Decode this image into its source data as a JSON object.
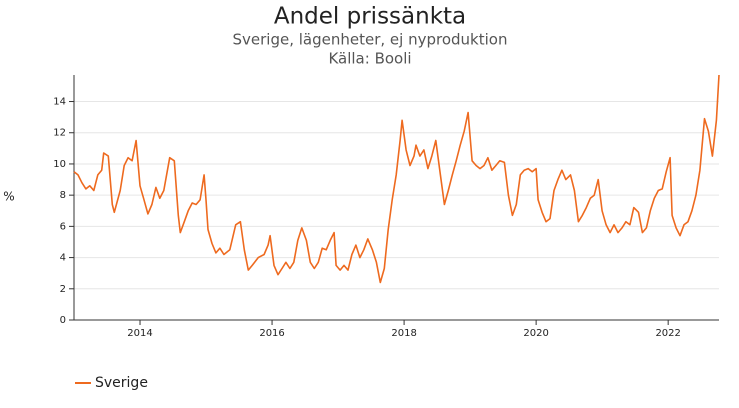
{
  "chart_data": {
    "type": "line",
    "title": "Andel prissänkta",
    "subtitle": "Sverige, lägenheter, ej nyproduktion",
    "source": "Källa: Booli",
    "ylabel": "%",
    "x": [
      2013.0,
      2013.06,
      2013.12,
      2013.18,
      2013.24,
      2013.3,
      2013.36,
      2013.42,
      2013.45,
      2013.52,
      2013.58,
      2013.61,
      2013.7,
      2013.76,
      2013.82,
      2013.88,
      2013.94,
      2014.0,
      2014.06,
      2014.12,
      2014.18,
      2014.24,
      2014.3,
      2014.36,
      2014.45,
      2014.52,
      2014.58,
      2014.61,
      2014.67,
      2014.73,
      2014.79,
      2014.85,
      2014.91,
      2014.97,
      2015.0,
      2015.03,
      2015.09,
      2015.15,
      2015.21,
      2015.27,
      2015.36,
      2015.45,
      2015.52,
      2015.58,
      2015.64,
      2015.7,
      2015.79,
      2015.88,
      2015.94,
      2015.97,
      2016.03,
      2016.09,
      2016.15,
      2016.21,
      2016.27,
      2016.33,
      2016.39,
      2016.45,
      2016.52,
      2016.58,
      2016.64,
      2016.7,
      2016.76,
      2016.82,
      2016.88,
      2016.94,
      2016.97,
      2017.03,
      2017.09,
      2017.15,
      2017.21,
      2017.27,
      2017.33,
      2017.39,
      2017.45,
      2017.52,
      2017.58,
      2017.64,
      2017.7,
      2017.76,
      2017.82,
      2017.88,
      2017.94,
      2017.97,
      2018.03,
      2018.09,
      2018.15,
      2018.18,
      2018.24,
      2018.3,
      2018.36,
      2018.42,
      2018.48,
      2018.55,
      2018.61,
      2018.67,
      2018.73,
      2018.79,
      2018.85,
      2018.91,
      2018.97,
      2019.03,
      2019.09,
      2019.15,
      2019.21,
      2019.27,
      2019.33,
      2019.39,
      2019.45,
      2019.52,
      2019.58,
      2019.64,
      2019.7,
      2019.76,
      2019.82,
      2019.88,
      2019.94,
      2020.0,
      2020.03,
      2020.09,
      2020.15,
      2020.21,
      2020.27,
      2020.33,
      2020.39,
      2020.45,
      2020.52,
      2020.58,
      2020.64,
      2020.7,
      2020.76,
      2020.82,
      2020.88,
      2020.94,
      2021.0,
      2021.06,
      2021.12,
      2021.18,
      2021.24,
      2021.3,
      2021.36,
      2021.42,
      2021.48,
      2021.55,
      2021.61,
      2021.67,
      2021.73,
      2021.79,
      2021.85,
      2021.91,
      2021.97,
      2022.03,
      2022.06,
      2022.12,
      2022.18,
      2022.24,
      2022.3,
      2022.36,
      2022.42,
      2022.48,
      2022.55,
      2022.61,
      2022.67,
      2022.73,
      2022.77
    ],
    "series": [
      {
        "name": "Sverige",
        "color": "#ee6a1f",
        "values": [
          9.5,
          9.3,
          8.8,
          8.4,
          8.6,
          8.3,
          9.3,
          9.6,
          10.7,
          10.5,
          7.4,
          6.9,
          8.3,
          9.9,
          10.4,
          10.2,
          11.5,
          8.6,
          7.7,
          6.8,
          7.4,
          8.5,
          7.8,
          8.3,
          10.4,
          10.2,
          6.7,
          5.6,
          6.3,
          7.0,
          7.5,
          7.4,
          7.7,
          9.3,
          7.7,
          5.8,
          4.9,
          4.3,
          4.6,
          4.2,
          4.5,
          6.1,
          6.3,
          4.5,
          3.2,
          3.5,
          4.0,
          4.2,
          4.8,
          5.4,
          3.5,
          2.9,
          3.3,
          3.7,
          3.3,
          3.7,
          5.1,
          5.9,
          5.1,
          3.7,
          3.3,
          3.7,
          4.6,
          4.5,
          5.1,
          5.6,
          3.5,
          3.2,
          3.5,
          3.2,
          4.2,
          4.8,
          4.0,
          4.5,
          5.2,
          4.5,
          3.7,
          2.4,
          3.3,
          5.8,
          7.7,
          9.3,
          11.5,
          12.8,
          10.9,
          9.9,
          10.5,
          11.2,
          10.5,
          10.9,
          9.7,
          10.5,
          11.5,
          9.3,
          7.4,
          8.3,
          9.3,
          10.2,
          11.2,
          12.1,
          13.3,
          10.2,
          9.9,
          9.7,
          9.9,
          10.4,
          9.6,
          9.9,
          10.2,
          10.1,
          8.0,
          6.7,
          7.4,
          9.3,
          9.6,
          9.7,
          9.5,
          9.7,
          7.7,
          6.9,
          6.3,
          6.5,
          8.3,
          9.0,
          9.6,
          9.0,
          9.3,
          8.3,
          6.3,
          6.7,
          7.2,
          7.8,
          8.0,
          9.0,
          7.0,
          6.1,
          5.6,
          6.1,
          5.6,
          5.9,
          6.3,
          6.1,
          7.2,
          6.9,
          5.6,
          5.9,
          7.0,
          7.8,
          8.3,
          8.4,
          9.5,
          10.4,
          6.7,
          5.9,
          5.4,
          6.1,
          6.3,
          7.0,
          8.0,
          9.6,
          12.9,
          12.1,
          10.5,
          12.8,
          15.7
        ]
      }
    ],
    "xlim": [
      2013,
      2022.77
    ],
    "xticks": [
      2014,
      2016,
      2018,
      2020,
      2022
    ],
    "ylim": [
      0,
      15.7
    ],
    "yticks": [
      0,
      2,
      4,
      6,
      8,
      10,
      12,
      14
    ],
    "grid": true
  }
}
